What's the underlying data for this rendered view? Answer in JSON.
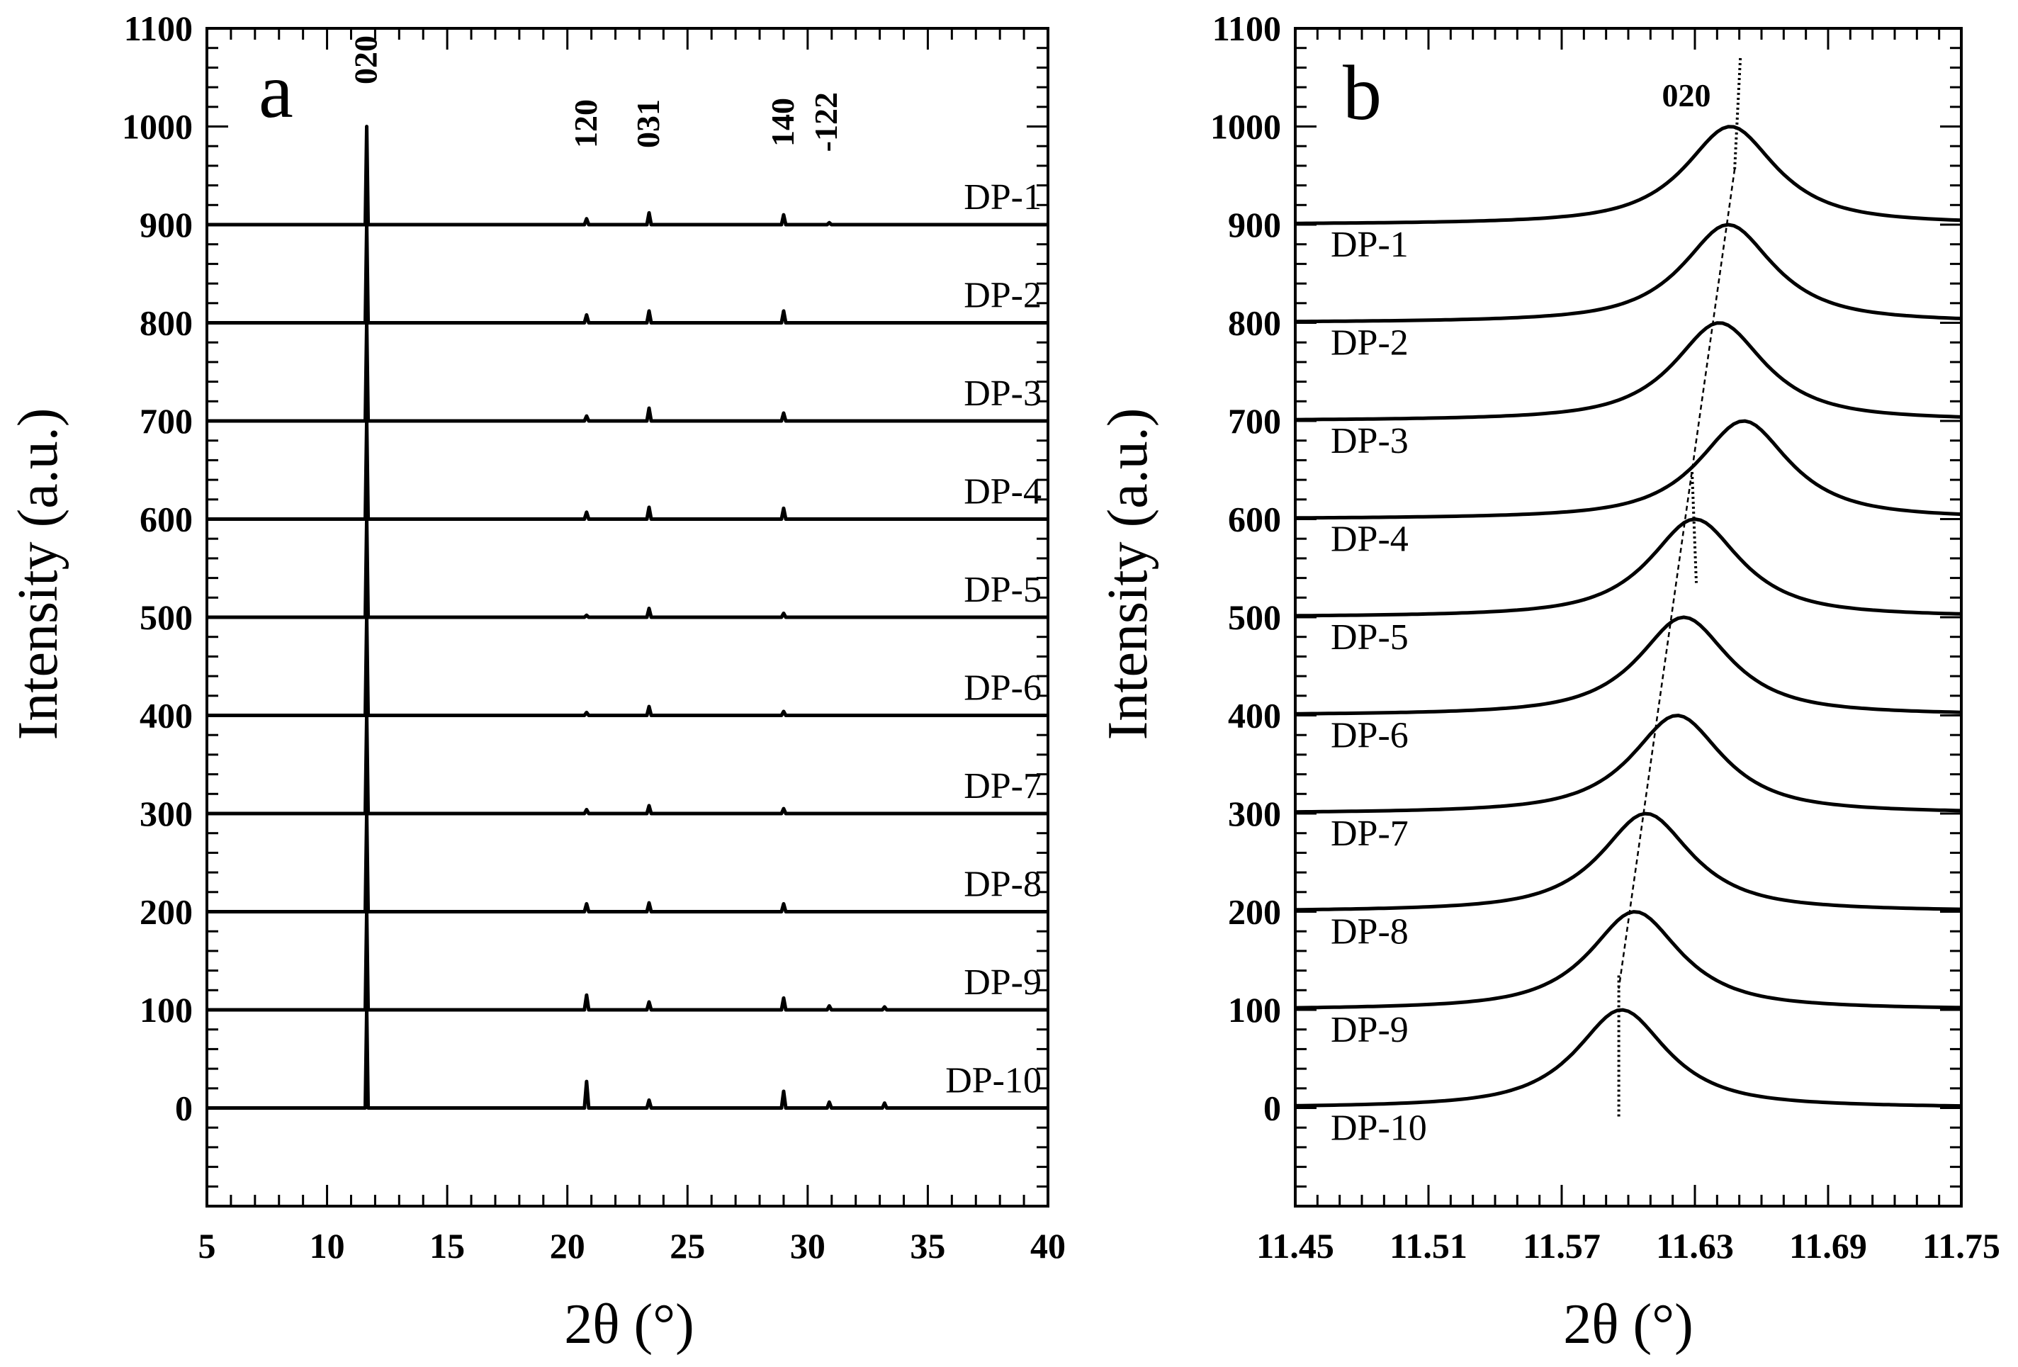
{
  "chart_data": [
    {
      "type": "line",
      "panel_label": "a",
      "xlabel": "2θ (°)",
      "ylabel": "Intensity (a.u.)",
      "xlim": [
        5,
        40
      ],
      "ylim": [
        -100,
        1100
      ],
      "x_ticks": [
        5,
        10,
        15,
        20,
        25,
        30,
        35,
        40
      ],
      "y_ticks": [
        0,
        100,
        200,
        300,
        400,
        500,
        600,
        700,
        800,
        900,
        1000,
        1100
      ],
      "grid": false,
      "peak_labels": [
        {
          "text": "020",
          "x": 11.65
        },
        {
          "text": "120",
          "x": 20.8
        },
        {
          "text": "031",
          "x": 23.4
        },
        {
          "text": "140",
          "x": 29.0
        },
        {
          "text": "-122",
          "x": 30.8
        }
      ],
      "series": [
        {
          "name": "DP-1",
          "offset": 900,
          "peaks": [
            [
              11.65,
              1000
            ],
            [
              20.8,
              906
            ],
            [
              23.4,
              912
            ],
            [
              29.0,
              910
            ],
            [
              30.9,
              902
            ]
          ]
        },
        {
          "name": "DP-2",
          "offset": 800,
          "peaks": [
            [
              11.65,
              900
            ],
            [
              20.8,
              808
            ],
            [
              23.4,
              812
            ],
            [
              29.0,
              812
            ]
          ]
        },
        {
          "name": "DP-3",
          "offset": 700,
          "peaks": [
            [
              11.65,
              800
            ],
            [
              20.8,
              705
            ],
            [
              23.4,
              713
            ],
            [
              29.0,
              708
            ]
          ]
        },
        {
          "name": "DP-4",
          "offset": 600,
          "peaks": [
            [
              11.65,
              700
            ],
            [
              20.8,
              607
            ],
            [
              23.4,
              612
            ],
            [
              29.0,
              611
            ]
          ]
        },
        {
          "name": "DP-5",
          "offset": 500,
          "peaks": [
            [
              11.65,
              600
            ],
            [
              20.8,
              502
            ],
            [
              23.4,
              509
            ],
            [
              29.0,
              504
            ]
          ]
        },
        {
          "name": "DP-6",
          "offset": 400,
          "peaks": [
            [
              11.65,
              500
            ],
            [
              20.8,
              403
            ],
            [
              23.4,
              409
            ],
            [
              29.0,
              404
            ]
          ]
        },
        {
          "name": "DP-7",
          "offset": 300,
          "peaks": [
            [
              11.65,
              400
            ],
            [
              20.8,
              304
            ],
            [
              23.4,
              308
            ],
            [
              29.0,
              305
            ]
          ]
        },
        {
          "name": "DP-8",
          "offset": 200,
          "peaks": [
            [
              11.65,
              300
            ],
            [
              20.8,
              208
            ],
            [
              23.4,
              209
            ],
            [
              29.0,
              208
            ]
          ]
        },
        {
          "name": "DP-9",
          "offset": 100,
          "peaks": [
            [
              11.65,
              200
            ],
            [
              20.8,
              115
            ],
            [
              23.4,
              108
            ],
            [
              29.0,
              112
            ],
            [
              30.9,
              104
            ],
            [
              33.2,
              103
            ]
          ]
        },
        {
          "name": "DP-10",
          "offset": 0,
          "peaks": [
            [
              11.65,
              100
            ],
            [
              20.8,
              27
            ],
            [
              23.4,
              8
            ],
            [
              29.0,
              17
            ],
            [
              30.9,
              6
            ],
            [
              33.2,
              5
            ]
          ]
        }
      ]
    },
    {
      "type": "line",
      "panel_label": "b",
      "xlabel": "2θ (°)",
      "ylabel": "Intensity (a.u.)",
      "xlim": [
        11.45,
        11.75
      ],
      "ylim": [
        -100,
        1100
      ],
      "x_ticks": [
        "11.45",
        "11.51",
        "11.57",
        "11.63",
        "11.69",
        "11.75"
      ],
      "y_ticks": [
        0,
        100,
        200,
        300,
        400,
        500,
        600,
        700,
        800,
        900,
        1000,
        1100
      ],
      "grid": false,
      "peak_label": "020",
      "series": [
        {
          "name": "DP-1",
          "offset": 900,
          "peak_x": 11.646,
          "peak_y": 1000
        },
        {
          "name": "DP-2",
          "offset": 800,
          "peak_x": 11.645,
          "peak_y": 900
        },
        {
          "name": "DP-3",
          "offset": 700,
          "peak_x": 11.641,
          "peak_y": 800
        },
        {
          "name": "DP-4",
          "offset": 600,
          "peak_x": 11.652,
          "peak_y": 700
        },
        {
          "name": "DP-5",
          "offset": 500,
          "peak_x": 11.63,
          "peak_y": 600
        },
        {
          "name": "DP-6",
          "offset": 400,
          "peak_x": 11.625,
          "peak_y": 500
        },
        {
          "name": "DP-7",
          "offset": 300,
          "peak_x": 11.622,
          "peak_y": 400
        },
        {
          "name": "DP-8",
          "offset": 200,
          "peak_x": 11.608,
          "peak_y": 300
        },
        {
          "name": "DP-9",
          "offset": 100,
          "peak_x": 11.603,
          "peak_y": 200
        },
        {
          "name": "DP-10",
          "offset": 0,
          "peak_x": 11.597,
          "peak_y": 100
        }
      ]
    }
  ]
}
